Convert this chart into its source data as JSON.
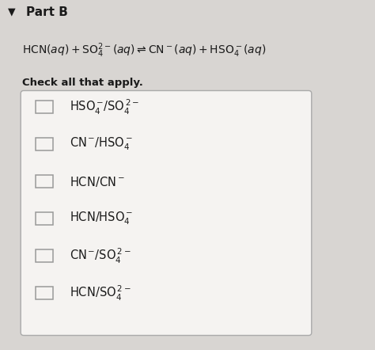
{
  "background_color": "#d8d5d2",
  "box_bg": "#e8e5e2",
  "title": "Part B",
  "equation_parts": [
    {
      "text": "HCN(",
      "style": "normal"
    },
    {
      "text": "aq",
      "style": "italic"
    },
    {
      "text": ") + SO",
      "style": "normal"
    },
    {
      "text": "4",
      "style": "sub"
    },
    {
      "text": "2−",
      "style": "sup"
    },
    {
      "text": "(",
      "style": "normal"
    },
    {
      "text": "aq",
      "style": "italic"
    },
    {
      "text": ") ⇌ CN",
      "style": "normal"
    },
    {
      "text": "−",
      "style": "sup"
    },
    {
      "text": "(",
      "style": "normal"
    },
    {
      "text": "aq",
      "style": "italic"
    },
    {
      "text": ") + HSO",
      "style": "normal"
    },
    {
      "text": "4",
      "style": "sub"
    },
    {
      "text": "−",
      "style": "sup"
    },
    {
      "text": "(",
      "style": "normal"
    },
    {
      "text": "aq",
      "style": "italic"
    },
    {
      "text": ")",
      "style": "normal"
    }
  ],
  "subtext": "Check all that apply.",
  "box_color": "#f5f3f1",
  "box_border_color": "#aaaaaa",
  "text_color": "#1a1a1a",
  "checkbox_color": "#999999",
  "math_options": [
    "r'$\\mathrm{HSO_4^-/SO_4^{2-}}$'",
    "r'$\\mathrm{CN^-/HSO_4^-}$'",
    "r'$\\mathrm{HCN/CN^-}$'",
    "r'$\\mathrm{HCN/HSO_4^-}$'",
    "r'$\\mathrm{CN^-/SO_4^{2-}}$'",
    "r'$\\mathrm{HCN/SO_4^{2-}}$'"
  ]
}
